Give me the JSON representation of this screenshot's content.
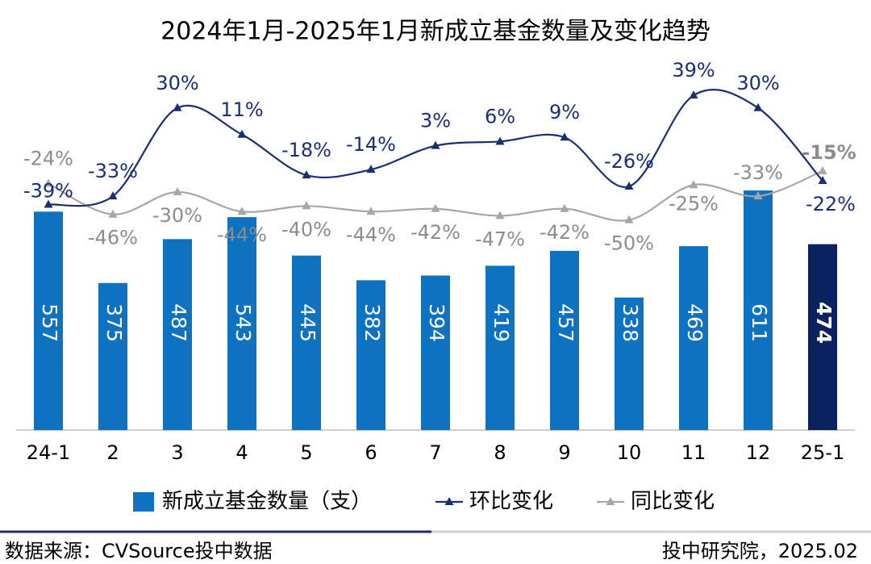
{
  "chart_data": {
    "type": "bar_line",
    "title": "2024年1月-2025年1月新成立基金数量及变化趋势",
    "categories": [
      "24-1",
      "2",
      "3",
      "4",
      "5",
      "6",
      "7",
      "8",
      "9",
      "10",
      "11",
      "12",
      "25-1"
    ],
    "ylim": [
      0,
      1000
    ],
    "y2lim": [
      -200,
      80
    ],
    "series": [
      {
        "name": "新成立基金数量（支）",
        "color": "#0f72c0",
        "colors": [
          "#0f72c0",
          "#0f72c0",
          "#0f72c0",
          "#0f72c0",
          "#0f72c0",
          "#0f72c0",
          "#0f72c0",
          "#0f72c0",
          "#0f72c0",
          "#0f72c0",
          "#0f72c0",
          "#0f72c0",
          "#0b2261"
        ],
        "values": [
          557,
          375,
          487,
          543,
          445,
          382,
          394,
          419,
          457,
          338,
          469,
          611,
          474
        ]
      },
      {
        "name": "环比变化",
        "color": "#1b2f6e",
        "axis": "y2",
        "values": [
          -39,
          -33,
          30,
          11,
          -18,
          -14,
          3,
          6,
          9,
          -26,
          39,
          30,
          -22
        ],
        "value_labels": [
          "-39%",
          "-33%",
          "30%",
          "11%",
          "-18%",
          "-14%",
          "3%",
          "6%",
          "9%",
          "-26%",
          "39%",
          "30%",
          "-22%"
        ]
      },
      {
        "name": "同比变化",
        "color": "#a6a6a6",
        "axis": "y2",
        "values": [
          -24,
          -46,
          -30,
          -44,
          -40,
          -44,
          -42,
          -47,
          -42,
          -50,
          -25,
          -33,
          -15
        ],
        "value_labels": [
          "-24%",
          "-46%",
          "-30%",
          "-44%",
          "-40%",
          "-44%",
          "-42%",
          "-47%",
          "-42%",
          "-50%",
          "-25%",
          "-33%",
          "-15%"
        ]
      }
    ],
    "source": "数据来源：CVSource投中数据",
    "credit": "投中研究院，2025.02"
  }
}
